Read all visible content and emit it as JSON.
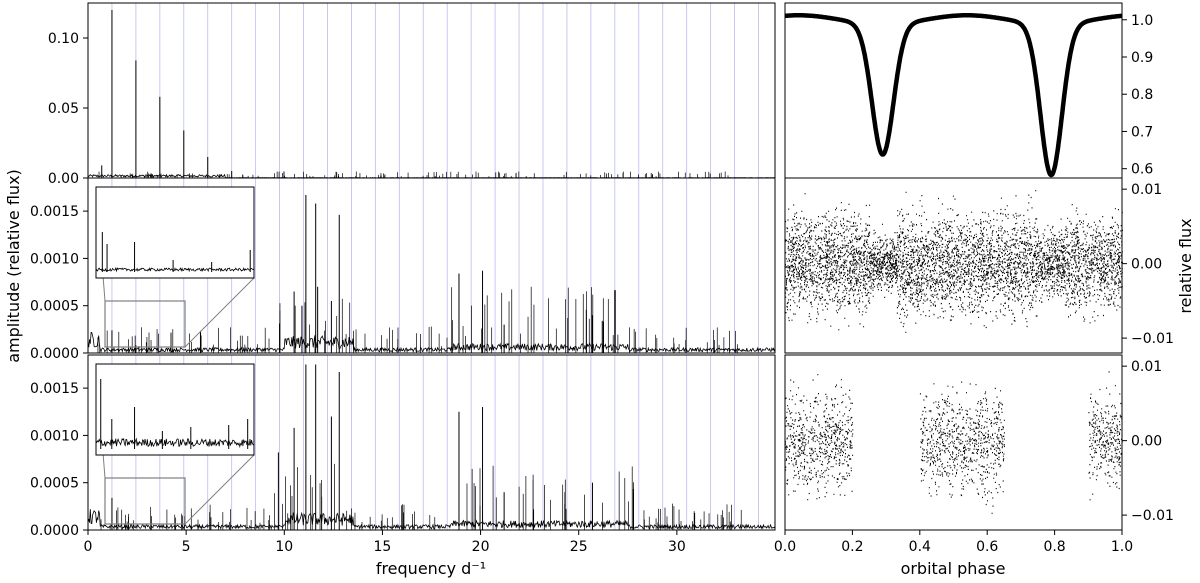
{
  "chart_data": [
    {
      "type": "line",
      "panel": "periodogram-full",
      "xlim": [
        0,
        35
      ],
      "ylim": [
        0,
        0.125
      ],
      "x_ticks": [
        "0",
        "5",
        "10",
        "15",
        "20",
        "25",
        "30"
      ],
      "y_ticks": [
        "0.00",
        "0.05",
        "0.10"
      ],
      "y_tick_values": [
        0.0,
        0.05,
        0.1
      ],
      "vertical_grid_lines": "orbital harmonics (blue)",
      "peaks": [
        {
          "x": 0.7,
          "y": 0.009
        },
        {
          "x": 1.22,
          "y": 0.12
        },
        {
          "x": 2.44,
          "y": 0.084
        },
        {
          "x": 3.66,
          "y": 0.058
        },
        {
          "x": 4.88,
          "y": 0.034
        },
        {
          "x": 6.1,
          "y": 0.015
        },
        {
          "x": 7.32,
          "y": 0.005
        }
      ]
    },
    {
      "type": "line",
      "panel": "periodogram-residual-full",
      "xlim": [
        0,
        35
      ],
      "ylim": [
        0,
        0.00185
      ],
      "x_ticks": [
        "0",
        "5",
        "10",
        "15",
        "20",
        "25",
        "30"
      ],
      "y_ticks": [
        "0.0000",
        "0.0005",
        "0.0010",
        "0.0015"
      ],
      "y_tick_values": [
        0.0,
        0.0005,
        0.001,
        0.0015
      ],
      "peaks": [
        {
          "x": 1.22,
          "y": 0.00024
        },
        {
          "x": 2.44,
          "y": 8e-05
        },
        {
          "x": 10.5,
          "y": 0.00065
        },
        {
          "x": 10.9,
          "y": 0.0005
        },
        {
          "x": 11.1,
          "y": 0.00167
        },
        {
          "x": 11.6,
          "y": 0.00158
        },
        {
          "x": 11.7,
          "y": 0.0007
        },
        {
          "x": 12.4,
          "y": 0.00055
        },
        {
          "x": 12.8,
          "y": 0.00146
        },
        {
          "x": 18.9,
          "y": 0.00084
        },
        {
          "x": 20.1,
          "y": 0.00087
        },
        {
          "x": 21.2,
          "y": 0.0003
        },
        {
          "x": 25.7,
          "y": 0.0004
        },
        {
          "x": 26.2,
          "y": 0.00034
        }
      ]
    },
    {
      "type": "line",
      "panel": "periodogram-residual-out-of-eclipse",
      "xlim": [
        0,
        35
      ],
      "ylim": [
        0,
        0.00185
      ],
      "x_ticks": [
        "0",
        "5",
        "10",
        "15",
        "20",
        "25",
        "30"
      ],
      "y_ticks": [
        "0.0000",
        "0.0005",
        "0.0010",
        "0.0015"
      ],
      "y_tick_values": [
        0.0,
        0.0005,
        0.001,
        0.0015
      ],
      "xlabel": "frequency d⁻¹",
      "peaks": [
        {
          "x": 1.22,
          "y": 0.00034
        },
        {
          "x": 9.7,
          "y": 0.00082
        },
        {
          "x": 10.5,
          "y": 0.00108
        },
        {
          "x": 11.1,
          "y": 0.00175
        },
        {
          "x": 11.6,
          "y": 0.00175
        },
        {
          "x": 12.4,
          "y": 0.0012
        },
        {
          "x": 12.8,
          "y": 0.00167
        },
        {
          "x": 18.9,
          "y": 0.00125
        },
        {
          "x": 20.1,
          "y": 0.0013
        },
        {
          "x": 21.2,
          "y": 0.0004
        },
        {
          "x": 24.3,
          "y": 0.0004
        },
        {
          "x": 25.7,
          "y": 0.0005
        }
      ]
    },
    {
      "type": "scatter",
      "panel": "light-curve",
      "xlim": [
        0,
        1
      ],
      "ylim": [
        0.575,
        1.045
      ],
      "y_ticks": [
        "0.6",
        "0.7",
        "0.8",
        "0.9",
        "1.0"
      ],
      "y_tick_values": [
        0.6,
        0.7,
        0.8,
        0.9,
        1.0
      ],
      "eclipses": [
        {
          "phase": 0.29,
          "min_flux": 0.65
        },
        {
          "phase": 0.79,
          "min_flux": 0.595
        }
      ]
    },
    {
      "type": "scatter",
      "panel": "residual-light-curve",
      "xlim": [
        0,
        1
      ],
      "ylim": [
        -0.012,
        0.0115
      ],
      "y_ticks": [
        "0.01",
        "0.00",
        "−0.01"
      ],
      "y_tick_values": [
        0.01,
        0.0,
        -0.01
      ],
      "ylabel": "relative flux"
    },
    {
      "type": "scatter",
      "panel": "residual-out-of-eclipse",
      "xlim": [
        0,
        1
      ],
      "ylim": [
        -0.012,
        0.0115
      ],
      "x_ticks": [
        "0.0",
        "0.2",
        "0.4",
        "0.6",
        "0.8",
        "1.0"
      ],
      "y_ticks": [
        "0.01",
        "0.00",
        "−0.01"
      ],
      "y_tick_values": [
        0.01,
        0.0,
        -0.01
      ],
      "xlabel": "orbital phase",
      "phase_windows": [
        [
          0.0,
          0.2
        ],
        [
          0.4,
          0.65
        ],
        [
          0.9,
          1.0
        ]
      ]
    }
  ],
  "labels": {
    "left_ylabel": "amplitude (relative flux)",
    "left_xlabel": "frequency d⁻¹",
    "right_ylabel": "relative flux",
    "right_xlabel": "orbital phase"
  },
  "colors": {
    "harmonic_lines": "#b9bdf0",
    "data": "#000000",
    "zoom_box": "#7f7f7f"
  }
}
